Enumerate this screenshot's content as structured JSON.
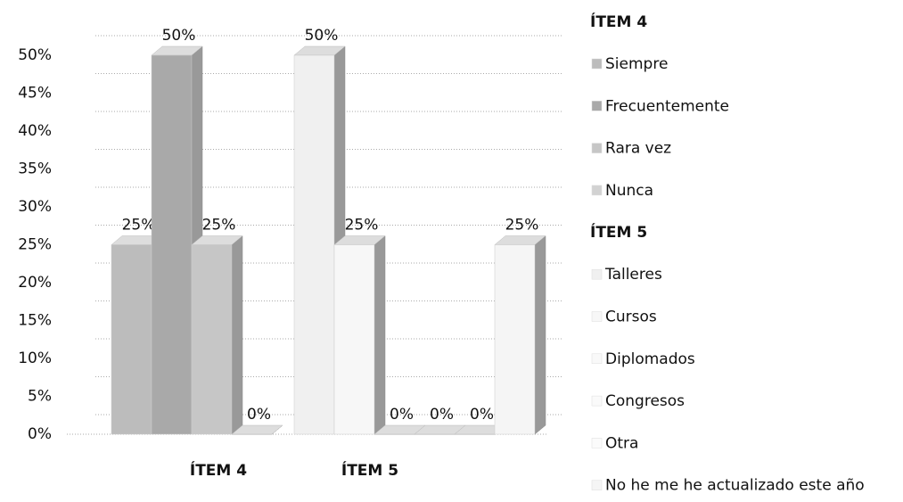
{
  "chart_data": {
    "type": "bar",
    "groups": [
      {
        "name": "ÍTEM 4",
        "series": [
          {
            "name": "Siempre",
            "color": "#bcbcbc",
            "values": [
              25
            ],
            "value_labels": [
              "25%"
            ]
          },
          {
            "name": "Frecuentemente",
            "color": "#a9a9a9",
            "values": [
              50
            ],
            "value_labels": [
              "50%"
            ]
          },
          {
            "name": "Rara vez",
            "color": "#c6c6c6",
            "values": [
              25
            ],
            "value_labels": [
              "25%"
            ]
          },
          {
            "name": "Nunca",
            "color": "#d2d2d2",
            "values": [
              0
            ],
            "value_labels": [
              "0%"
            ]
          }
        ]
      },
      {
        "name": "ÍTEM 5",
        "series": [
          {
            "name": "Talleres",
            "color": "#f0f0f0",
            "values": [
              50
            ],
            "value_labels": [
              "50%"
            ]
          },
          {
            "name": "Cursos",
            "color": "#f7f7f7",
            "values": [
              25
            ],
            "value_labels": [
              "25%"
            ]
          },
          {
            "name": "Diplomados",
            "color": "#f9f9f9",
            "values": [
              0
            ],
            "value_labels": [
              "0%"
            ]
          },
          {
            "name": "Congresos",
            "color": "#fafafa",
            "values": [
              0
            ],
            "value_labels": [
              "0%"
            ]
          },
          {
            "name": "Otra",
            "color": "#fbfbfb",
            "values": [
              0
            ],
            "value_labels": [
              "0%"
            ]
          },
          {
            "name": "No he me he actualizado este año",
            "color": "#f5f5f5",
            "values": [
              25
            ],
            "value_labels": [
              "25%"
            ]
          }
        ]
      }
    ],
    "ylim": [
      0,
      50
    ],
    "yticks": [
      {
        "value": 0,
        "label": "0%"
      },
      {
        "value": 5,
        "label": "5%"
      },
      {
        "value": 10,
        "label": "10%"
      },
      {
        "value": 15,
        "label": "15%"
      },
      {
        "value": 20,
        "label": "20%"
      },
      {
        "value": 25,
        "label": "25%"
      },
      {
        "value": 30,
        "label": "30%"
      },
      {
        "value": 35,
        "label": "35%"
      },
      {
        "value": 40,
        "label": "40%"
      },
      {
        "value": 45,
        "label": "45%"
      },
      {
        "value": 50,
        "label": "50%"
      }
    ],
    "grid": true
  }
}
